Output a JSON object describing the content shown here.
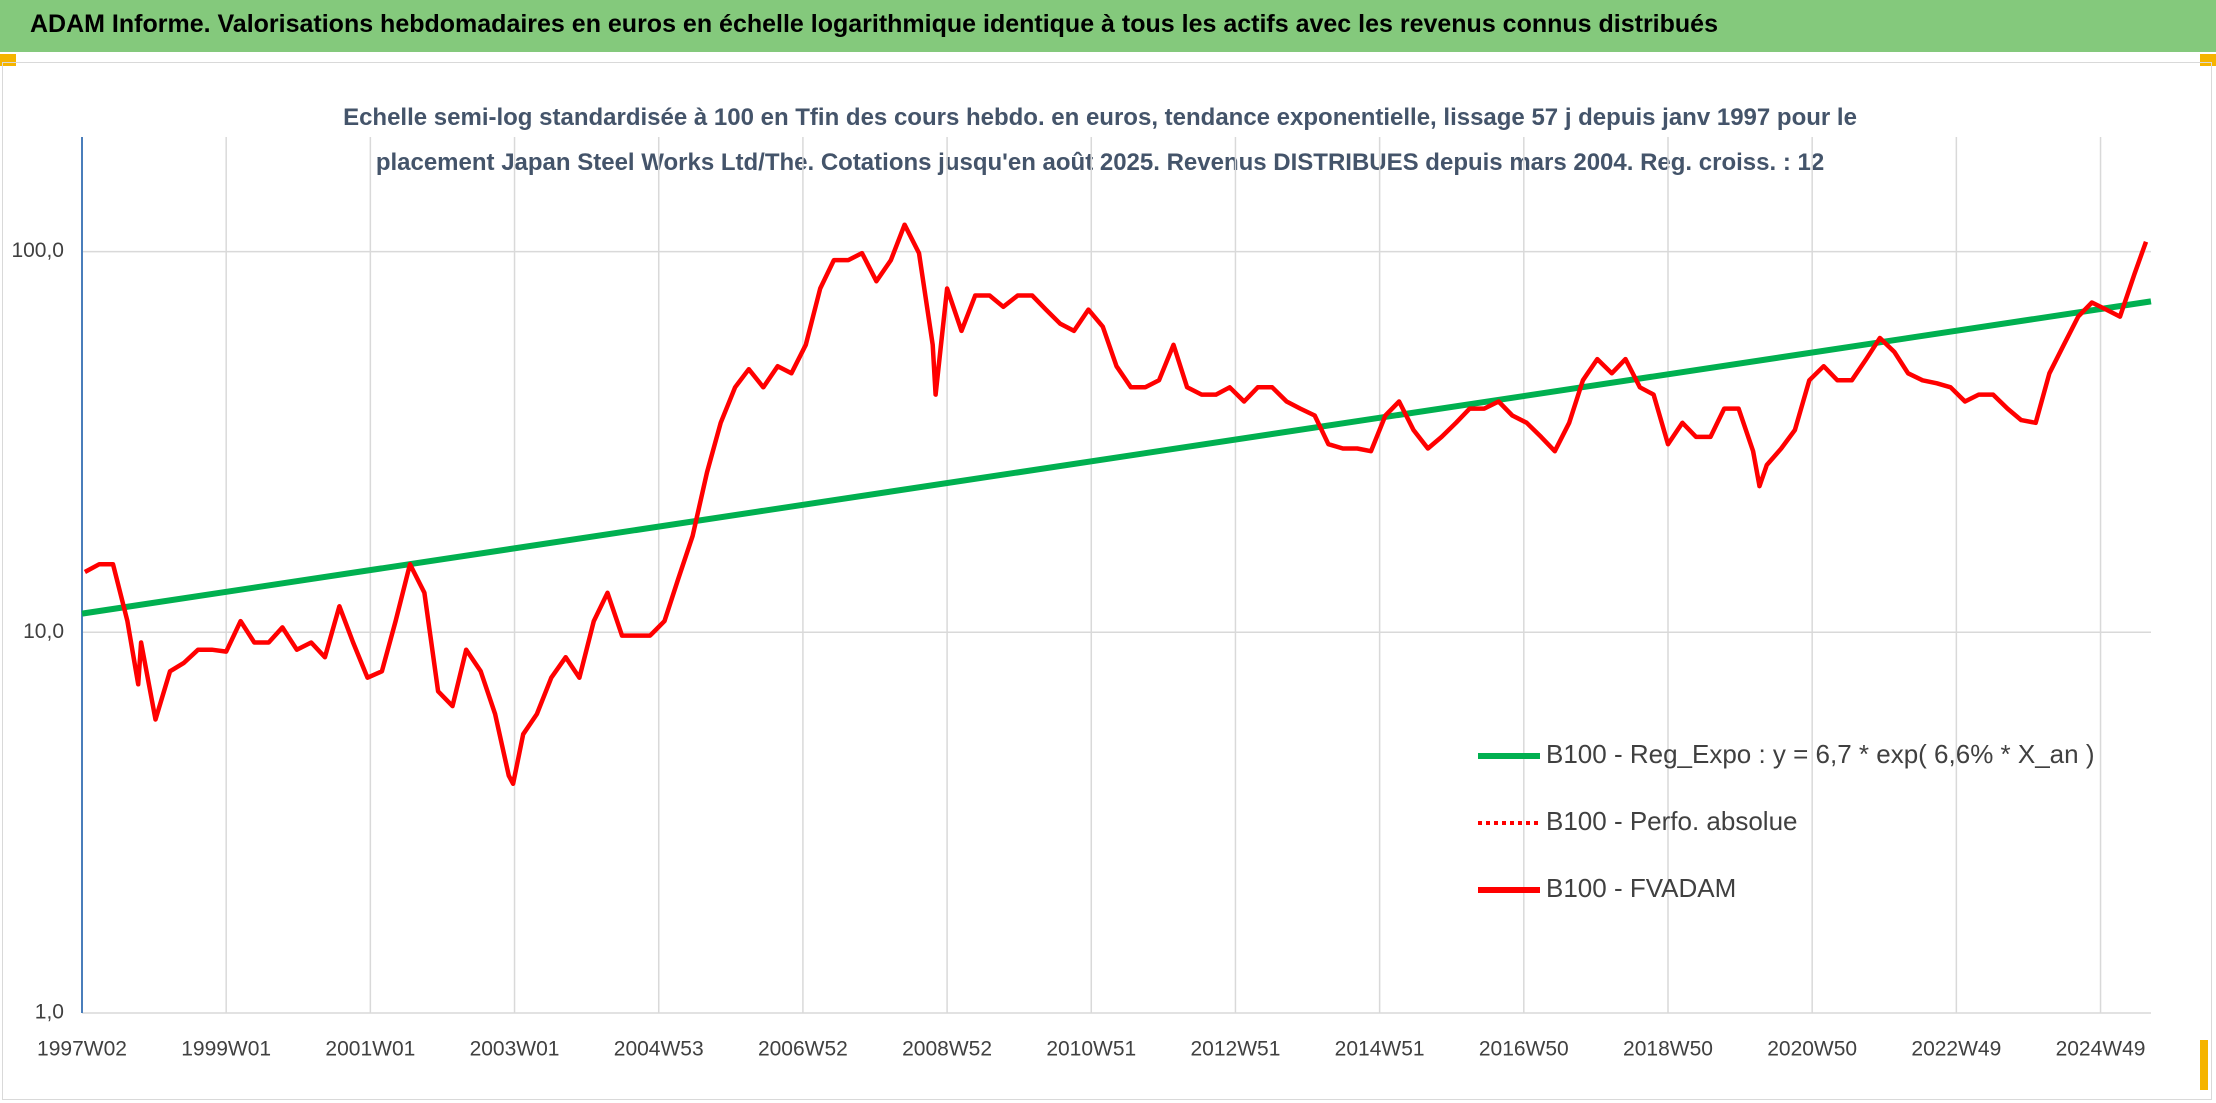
{
  "chart_data": {
    "type": "line",
    "title": "ADAM Informe. Valorisations hebdomadaires en euros en échelle logarithmique identique à tous les actifs avec les revenus connus distribués",
    "subtitle": "Echelle semi-log standardisée à 100 en Tfin des cours hebdo. en euros, tendance exponentielle, lissage 57 j depuis janv 1997 pour le placement Japan Steel Works Ltd/The. Cotations jusqu'en août 2025. Revenus DISTRIBUES depuis mars 2004. Reg. croiss. : 12",
    "log_y": true,
    "grid": true,
    "legend": "right",
    "xlim": [
      1997.0,
      2025.7
    ],
    "xticks": [
      {
        "value": 1997.0,
        "label": "1997W02"
      },
      {
        "value": 1999.0,
        "label": "1999W01"
      },
      {
        "value": 2001.0,
        "label": "2001W01"
      },
      {
        "value": 2003.0,
        "label": "2003W01"
      },
      {
        "value": 2005.0,
        "label": "2004W53"
      },
      {
        "value": 2007.0,
        "label": "2006W52"
      },
      {
        "value": 2009.0,
        "label": "2008W52"
      },
      {
        "value": 2011.0,
        "label": "2010W51"
      },
      {
        "value": 2013.0,
        "label": "2012W51"
      },
      {
        "value": 2015.0,
        "label": "2014W51"
      },
      {
        "value": 2017.0,
        "label": "2016W50"
      },
      {
        "value": 2019.0,
        "label": "2018W50"
      },
      {
        "value": 2021.0,
        "label": "2020W50"
      },
      {
        "value": 2023.0,
        "label": "2022W49"
      },
      {
        "value": 2025.0,
        "label": "2024W49"
      }
    ],
    "ylim": [
      1,
      200
    ],
    "yticks": [
      {
        "value": 1,
        "label": "1,0"
      },
      {
        "value": 10,
        "label": "10,0"
      },
      {
        "value": 100,
        "label": "100,0"
      }
    ],
    "series": [
      {
        "name": "B100 - Reg_Expo : y = 6,7 * exp( 6,6% *  X_an )",
        "color": "#00b050",
        "style": "solid",
        "x": [
          1997.0,
          2025.7
        ],
        "values": [
          11.2,
          74.0
        ]
      },
      {
        "name": "B100 - Perfo. absolue",
        "color": "#ff0000",
        "style": "dotted"
      },
      {
        "name": "B100 - FVADAM",
        "color": "#ff0000",
        "style": "solid",
        "x": [
          1997.04,
          1997.24,
          1997.43,
          1997.63,
          1997.78,
          1997.82,
          1998.02,
          1998.22,
          1998.41,
          1998.61,
          1998.8,
          1999.0,
          1999.2,
          1999.39,
          1999.59,
          1999.78,
          1999.98,
          2000.18,
          2000.37,
          2000.57,
          2000.76,
          2000.96,
          2001.16,
          2001.35,
          2001.55,
          2001.75,
          2001.94,
          2002.14,
          2002.33,
          2002.53,
          2002.73,
          2002.92,
          2002.98,
          2003.12,
          2003.31,
          2003.51,
          2003.71,
          2003.9,
          2004.1,
          2004.29,
          2004.49,
          2004.69,
          2004.88,
          2005.08,
          2005.27,
          2005.47,
          2005.67,
          2005.86,
          2006.06,
          2006.25,
          2006.45,
          2006.65,
          2006.84,
          2007.04,
          2007.24,
          2007.43,
          2007.63,
          2007.82,
          2008.02,
          2008.22,
          2008.41,
          2008.61,
          2008.8,
          2008.84,
          2009.0,
          2009.2,
          2009.39,
          2009.59,
          2009.78,
          2009.98,
          2010.18,
          2010.37,
          2010.57,
          2010.76,
          2010.96,
          2011.16,
          2011.35,
          2011.55,
          2011.75,
          2011.94,
          2012.14,
          2012.33,
          2012.53,
          2012.73,
          2012.92,
          2013.12,
          2013.31,
          2013.51,
          2013.71,
          2013.9,
          2014.1,
          2014.29,
          2014.49,
          2014.69,
          2014.88,
          2015.08,
          2015.27,
          2015.47,
          2015.67,
          2015.86,
          2016.06,
          2016.25,
          2016.45,
          2016.65,
          2016.84,
          2017.04,
          2017.24,
          2017.43,
          2017.63,
          2017.82,
          2018.02,
          2018.22,
          2018.41,
          2018.61,
          2018.8,
          2019.0,
          2019.2,
          2019.39,
          2019.59,
          2019.78,
          2019.98,
          2020.18,
          2020.27,
          2020.37,
          2020.57,
          2020.76,
          2020.96,
          2021.16,
          2021.35,
          2021.55,
          2021.75,
          2021.94,
          2022.14,
          2022.33,
          2022.53,
          2022.73,
          2022.92,
          2023.12,
          2023.31,
          2023.51,
          2023.71,
          2023.9,
          2024.1,
          2024.29,
          2024.49,
          2024.69,
          2024.88,
          2025.08,
          2025.27,
          2025.47,
          2025.63
        ],
        "values": [
          14.4,
          15.1,
          15.1,
          10.7,
          7.3,
          9.4,
          5.9,
          7.9,
          8.3,
          9.0,
          9.0,
          8.9,
          10.7,
          9.4,
          9.4,
          10.3,
          9.0,
          9.4,
          8.6,
          11.7,
          9.4,
          7.6,
          7.9,
          10.7,
          15.1,
          12.7,
          7.0,
          6.4,
          9.0,
          7.9,
          6.1,
          4.2,
          4.0,
          5.4,
          6.1,
          7.6,
          8.6,
          7.6,
          10.7,
          12.7,
          9.8,
          9.8,
          9.8,
          10.7,
          13.8,
          17.9,
          26.3,
          35.5,
          44.0,
          49.1,
          44.0,
          50.0,
          47.9,
          56.9,
          80.0,
          95.0,
          95.0,
          99.1,
          83.6,
          95.0,
          117.7,
          99.1,
          56.9,
          42.1,
          80.0,
          61.9,
          76.7,
          76.7,
          71.6,
          76.7,
          76.7,
          70.4,
          64.6,
          61.9,
          70.4,
          63.5,
          50.0,
          44.0,
          44.0,
          45.9,
          56.9,
          44.0,
          42.1,
          42.1,
          44.0,
          40.4,
          44.0,
          44.0,
          40.4,
          38.7,
          37.1,
          31.2,
          30.4,
          30.4,
          29.9,
          37.1,
          40.4,
          34.0,
          30.4,
          32.6,
          35.5,
          38.7,
          38.7,
          40.4,
          37.1,
          35.5,
          32.6,
          29.9,
          35.5,
          45.9,
          52.2,
          47.9,
          52.2,
          44.0,
          42.1,
          31.2,
          35.5,
          32.6,
          32.6,
          38.7,
          38.7,
          29.9,
          24.2,
          27.5,
          30.4,
          34.0,
          45.9,
          50.0,
          45.9,
          45.9,
          52.2,
          59.3,
          54.5,
          47.9,
          45.9,
          45.1,
          44.0,
          40.4,
          42.1,
          42.1,
          38.7,
          36.1,
          35.5,
          47.9,
          56.9,
          67.5,
          73.5,
          70.4,
          67.5,
          87.2,
          106.2
        ]
      }
    ]
  }
}
